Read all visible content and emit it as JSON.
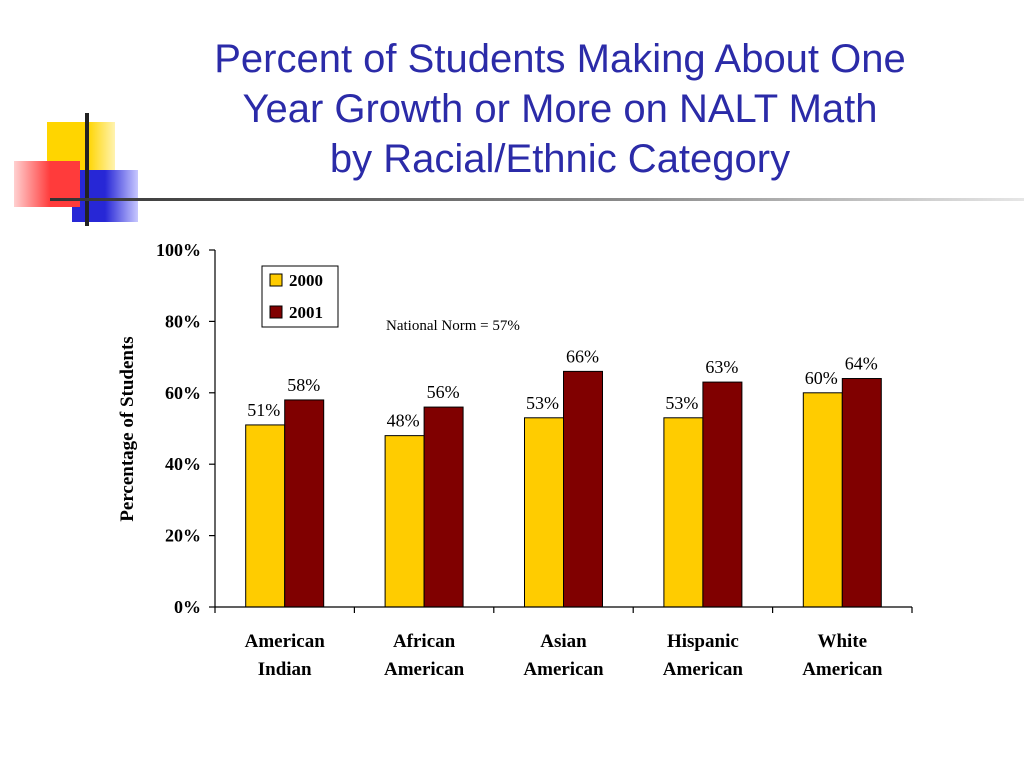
{
  "slide": {
    "title_lines": [
      "Percent of Students Making About One",
      "Year Growth or More on NALT Math",
      "by Racial/Ethnic Category"
    ]
  },
  "colors": {
    "title": "#2b2ba8",
    "series_2000": "#ffcc00",
    "series_2001": "#800000",
    "deco_yellow": "#ffd500",
    "deco_red": "#ff3b3b",
    "deco_blue": "#2727d6"
  },
  "chart_data": {
    "type": "bar",
    "title": "",
    "ylabel": "Percentage of Students",
    "xlabel": "",
    "ylim": [
      0,
      100
    ],
    "yticks": [
      "0%",
      "20%",
      "40%",
      "60%",
      "80%",
      "100%"
    ],
    "categories": [
      [
        "American",
        "Indian"
      ],
      [
        "African",
        "American"
      ],
      [
        "Asian",
        "American"
      ],
      [
        "Hispanic",
        "American"
      ],
      [
        "White",
        "American"
      ]
    ],
    "series": [
      {
        "name": "2000",
        "values": [
          51,
          48,
          53,
          53,
          60
        ],
        "labels": [
          "51%",
          "48%",
          "53%",
          "53%",
          "60%"
        ]
      },
      {
        "name": "2001",
        "values": [
          58,
          56,
          66,
          63,
          64
        ],
        "labels": [
          "58%",
          "56%",
          "66%",
          "63%",
          "64%"
        ]
      }
    ],
    "legend_position": "top-left",
    "annotation": "National Norm = 57%",
    "grid": false
  }
}
